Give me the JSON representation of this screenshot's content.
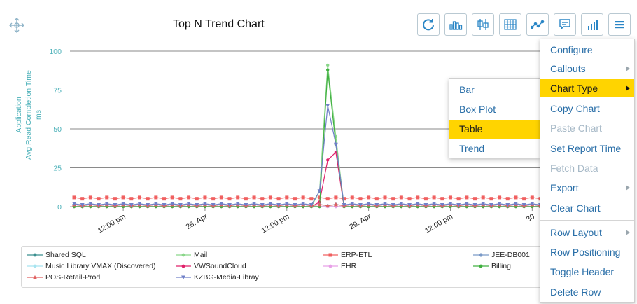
{
  "header": {
    "title": "Top N Trend Chart"
  },
  "toolbar": {
    "buttons": [
      {
        "icon": "refresh-icon"
      },
      {
        "icon": "bar-chart-icon"
      },
      {
        "icon": "box-plot-icon"
      },
      {
        "icon": "table-icon"
      },
      {
        "icon": "trend-icon"
      },
      {
        "icon": "comment-icon"
      },
      {
        "icon": "signal-bars-icon"
      },
      {
        "icon": "hamburger-menu-icon"
      }
    ]
  },
  "chart_data": {
    "type": "line",
    "title": "Top N Trend Chart",
    "ylabel_lines": [
      "Application",
      "Avg Read Completion Time",
      "ms"
    ],
    "ylim": [
      0,
      100
    ],
    "yticks": [
      0,
      25,
      50,
      75,
      100
    ],
    "x_tick_labels": [
      "12:00 pm",
      "28. Apr",
      "12:00 pm",
      "29. Apr",
      "12:00 pm",
      "30"
    ],
    "x_tick_index": [
      6,
      16,
      26,
      36,
      46,
      56
    ],
    "num_points": 58,
    "grid": true,
    "legend_position": "bottom",
    "series": [
      {
        "name": "Shared SQL",
        "color": "#3a8f8f",
        "marker": "circle",
        "base": 0,
        "peak_index": -1,
        "peaks": []
      },
      {
        "name": "Mail",
        "color": "#8ad68a",
        "marker": "circle",
        "base": 0,
        "peaks": [
          [
            30,
            10
          ],
          [
            31,
            91
          ],
          [
            32,
            45
          ]
        ]
      },
      {
        "name": "ERP-ETL",
        "color": "#f06060",
        "marker": "square",
        "base": 5.5,
        "peaks": []
      },
      {
        "name": "JEE-DB001",
        "color": "#7a9ac8",
        "marker": "diamond",
        "base": 1,
        "peaks": []
      },
      {
        "name": "Music Library VMAX (Discovered)",
        "color": "#a8e4f0",
        "marker": "circle",
        "base": 0,
        "peaks": []
      },
      {
        "name": "VWSoundCloud",
        "color": "#e0206a",
        "marker": "circle",
        "base": 0,
        "peaks": [
          [
            30,
            3
          ],
          [
            31,
            30
          ],
          [
            32,
            35
          ],
          [
            33,
            0
          ]
        ]
      },
      {
        "name": "EHR",
        "color": "#e8a0e8",
        "marker": "circle",
        "base": 0,
        "peaks": []
      },
      {
        "name": "Billing",
        "color": "#40b040",
        "marker": "circle",
        "base": 0,
        "peaks": [
          [
            31,
            88
          ],
          [
            32,
            40
          ]
        ]
      },
      {
        "name": "POS-Retail-Prod",
        "color": "#e06060",
        "marker": "triangle",
        "base": 1,
        "peaks": []
      },
      {
        "name": "KZBG-Media-Libray",
        "color": "#7080c8",
        "marker": "triangle-down",
        "base": 1.5,
        "peaks": [
          [
            30,
            10
          ],
          [
            31,
            65
          ],
          [
            32,
            40
          ]
        ]
      }
    ]
  },
  "main_menu": {
    "items": [
      {
        "label": "Configure",
        "disabled": false,
        "submenu": false,
        "active": false
      },
      {
        "label": "Callouts",
        "disabled": false,
        "submenu": true,
        "active": false
      },
      {
        "label": "Chart Type",
        "disabled": false,
        "submenu": true,
        "active": true
      },
      {
        "label": "Copy Chart",
        "disabled": false,
        "submenu": false,
        "active": false
      },
      {
        "label": "Paste Chart",
        "disabled": true,
        "submenu": false,
        "active": false
      },
      {
        "label": "Set Report Time",
        "disabled": false,
        "submenu": false,
        "active": false
      },
      {
        "label": "Fetch Data",
        "disabled": true,
        "submenu": false,
        "active": false
      },
      {
        "label": "Export",
        "disabled": false,
        "submenu": true,
        "active": false
      },
      {
        "label": "Clear Chart",
        "disabled": false,
        "submenu": false,
        "active": false
      },
      {
        "label": "Row Layout",
        "disabled": false,
        "submenu": true,
        "active": false
      },
      {
        "label": "Row Positioning",
        "disabled": false,
        "submenu": false,
        "active": false
      },
      {
        "label": "Toggle Header",
        "disabled": false,
        "submenu": false,
        "active": false
      },
      {
        "label": "Delete Row",
        "disabled": false,
        "submenu": false,
        "active": false
      }
    ]
  },
  "chart_type_menu": {
    "items": [
      {
        "label": "Bar",
        "active": false
      },
      {
        "label": "Box Plot",
        "active": false
      },
      {
        "label": "Table",
        "active": true
      },
      {
        "label": "Trend",
        "active": false
      }
    ]
  },
  "colors": {
    "accent": "#2a86c6",
    "highlight": "#ffd400",
    "axis_text": "#4ab0b8"
  }
}
